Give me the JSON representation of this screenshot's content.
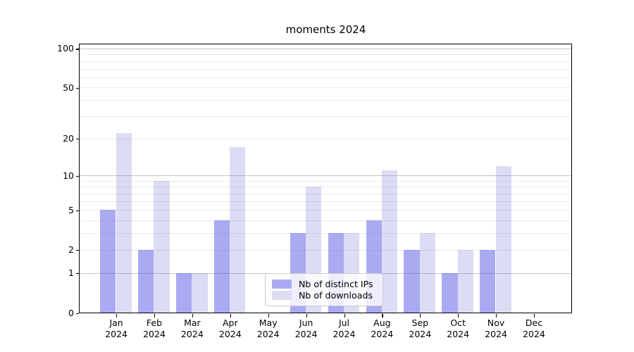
{
  "chart_data": {
    "type": "bar",
    "title": "moments 2024",
    "categories": [
      "Jan",
      "Feb",
      "Mar",
      "Apr",
      "May",
      "Jun",
      "Jul",
      "Aug",
      "Sep",
      "Oct",
      "Nov",
      "Dec"
    ],
    "category_year": "2024",
    "series": [
      {
        "name": "Nb of distinct IPs",
        "values": [
          5,
          2,
          1,
          4,
          0,
          3,
          3,
          4,
          2,
          1,
          2,
          0
        ],
        "bar_color": "rgba(85,85,229,0.5)",
        "swatch_color": "#aaaaf2"
      },
      {
        "name": "Nb of downloads",
        "values": [
          22,
          9,
          1,
          17,
          0,
          8,
          3,
          11,
          3,
          2,
          12,
          0
        ],
        "bar_color": "rgba(90,90,208,0.21)",
        "swatch_color": "#dcdcf5"
      }
    ],
    "y_axis": {
      "scale": "log1p",
      "tick_values": [
        0,
        1,
        2,
        5,
        10,
        20,
        50,
        100
      ],
      "tick_labels": [
        "0",
        "1",
        "2",
        "5",
        "10",
        "20",
        "50",
        "100"
      ],
      "major_gridlines": [
        1,
        10,
        100
      ],
      "minor_gridlines": [
        2,
        3,
        4,
        5,
        6,
        7,
        8,
        9,
        20,
        30,
        40,
        50,
        60,
        70,
        80,
        90
      ],
      "ymin": 0,
      "ymax": 107.5
    },
    "legend": {
      "position": "lower center"
    },
    "grid": true
  },
  "colors": {
    "minor_grid": "#eaeaea",
    "major_grid": "#c6c6c6",
    "spine": "#000000",
    "legend_border": "#cccccc",
    "background": "#ffffff"
  }
}
